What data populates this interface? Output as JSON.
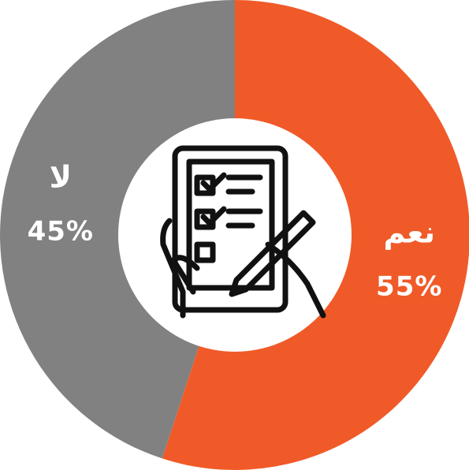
{
  "chart_data": {
    "type": "pie",
    "categories": [
      "نعم",
      "لا"
    ],
    "values": [
      55,
      45
    ],
    "value_labels": [
      "55%",
      "45%"
    ],
    "colors": [
      "#f05a28",
      "#818181"
    ]
  }
}
